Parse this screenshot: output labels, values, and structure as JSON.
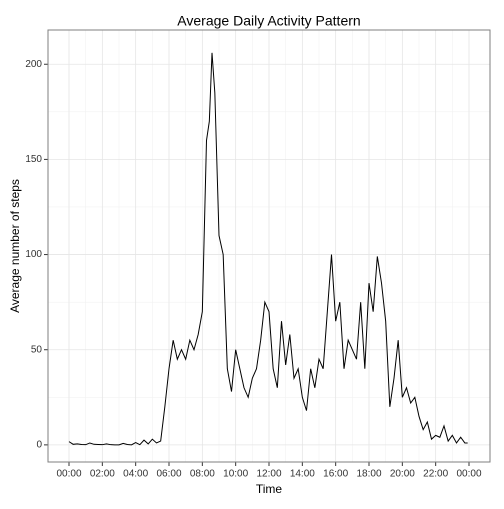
{
  "chart_data": {
    "type": "line",
    "title": "Average Daily Activity Pattern",
    "x_label": "Time",
    "y_label": "Average number of steps",
    "x": [
      0,
      0.25,
      0.5,
      0.75,
      1,
      1.25,
      1.5,
      1.75,
      2,
      2.25,
      2.5,
      2.75,
      3,
      3.25,
      3.5,
      3.75,
      4,
      4.25,
      4.5,
      4.75,
      5,
      5.25,
      5.5,
      5.75,
      6,
      6.25,
      6.5,
      6.75,
      7,
      7.25,
      7.5,
      7.75,
      8,
      8.25,
      8.42,
      8.58,
      8.75,
      9,
      9.25,
      9.5,
      9.75,
      10,
      10.25,
      10.5,
      10.75,
      11,
      11.25,
      11.5,
      11.75,
      12,
      12.25,
      12.5,
      12.75,
      13,
      13.25,
      13.5,
      13.75,
      14,
      14.25,
      14.5,
      14.75,
      15,
      15.25,
      15.5,
      15.75,
      16,
      16.25,
      16.5,
      16.75,
      17,
      17.25,
      17.5,
      17.75,
      18,
      18.25,
      18.5,
      18.75,
      19,
      19.25,
      19.5,
      19.75,
      20,
      20.25,
      20.5,
      20.75,
      21,
      21.25,
      21.5,
      21.75,
      22,
      22.25,
      22.5,
      22.75,
      23,
      23.25,
      23.5,
      23.75,
      23.92
    ],
    "series": [
      {
        "name": "steps",
        "color": "#000000",
        "values": [
          1.7,
          0.3,
          0.5,
          0.2,
          0.1,
          1.0,
          0.3,
          0.2,
          0.1,
          0.5,
          0.1,
          0,
          0,
          0.8,
          0.2,
          0,
          1.2,
          0.1,
          2.5,
          0.5,
          3.0,
          1.0,
          2.0,
          20,
          40,
          55,
          45,
          50,
          45,
          55,
          50,
          58,
          70,
          160,
          170,
          206,
          185,
          110,
          100,
          40,
          28,
          50,
          40,
          30,
          25,
          35,
          40,
          55,
          75,
          70,
          40,
          30,
          65,
          42,
          58,
          35,
          40,
          25,
          18,
          40,
          30,
          45,
          40,
          70,
          100,
          65,
          75,
          40,
          55,
          50,
          45,
          75,
          40,
          85,
          70,
          99,
          85,
          65,
          20,
          35,
          55,
          25,
          30,
          22,
          25,
          15,
          8,
          12,
          3,
          5,
          4,
          10,
          2,
          5,
          1,
          4,
          1,
          1
        ]
      }
    ],
    "xlim": [
      -1.26,
      25.26
    ],
    "ylim": [
      -9,
      218
    ],
    "xticks": [
      {
        "value": 0,
        "label": "00:00"
      },
      {
        "value": 2,
        "label": "02:00"
      },
      {
        "value": 4,
        "label": "04:00"
      },
      {
        "value": 6,
        "label": "06:00"
      },
      {
        "value": 8,
        "label": "08:00"
      },
      {
        "value": 10,
        "label": "10:00"
      },
      {
        "value": 12,
        "label": "12:00"
      },
      {
        "value": 14,
        "label": "14:00"
      },
      {
        "value": 16,
        "label": "16:00"
      },
      {
        "value": 18,
        "label": "18:00"
      },
      {
        "value": 20,
        "label": "20:00"
      },
      {
        "value": 22,
        "label": "22:00"
      },
      {
        "value": 24,
        "label": "00:00"
      }
    ],
    "yticks": [
      0,
      50,
      100,
      150,
      200
    ],
    "grid": true
  }
}
